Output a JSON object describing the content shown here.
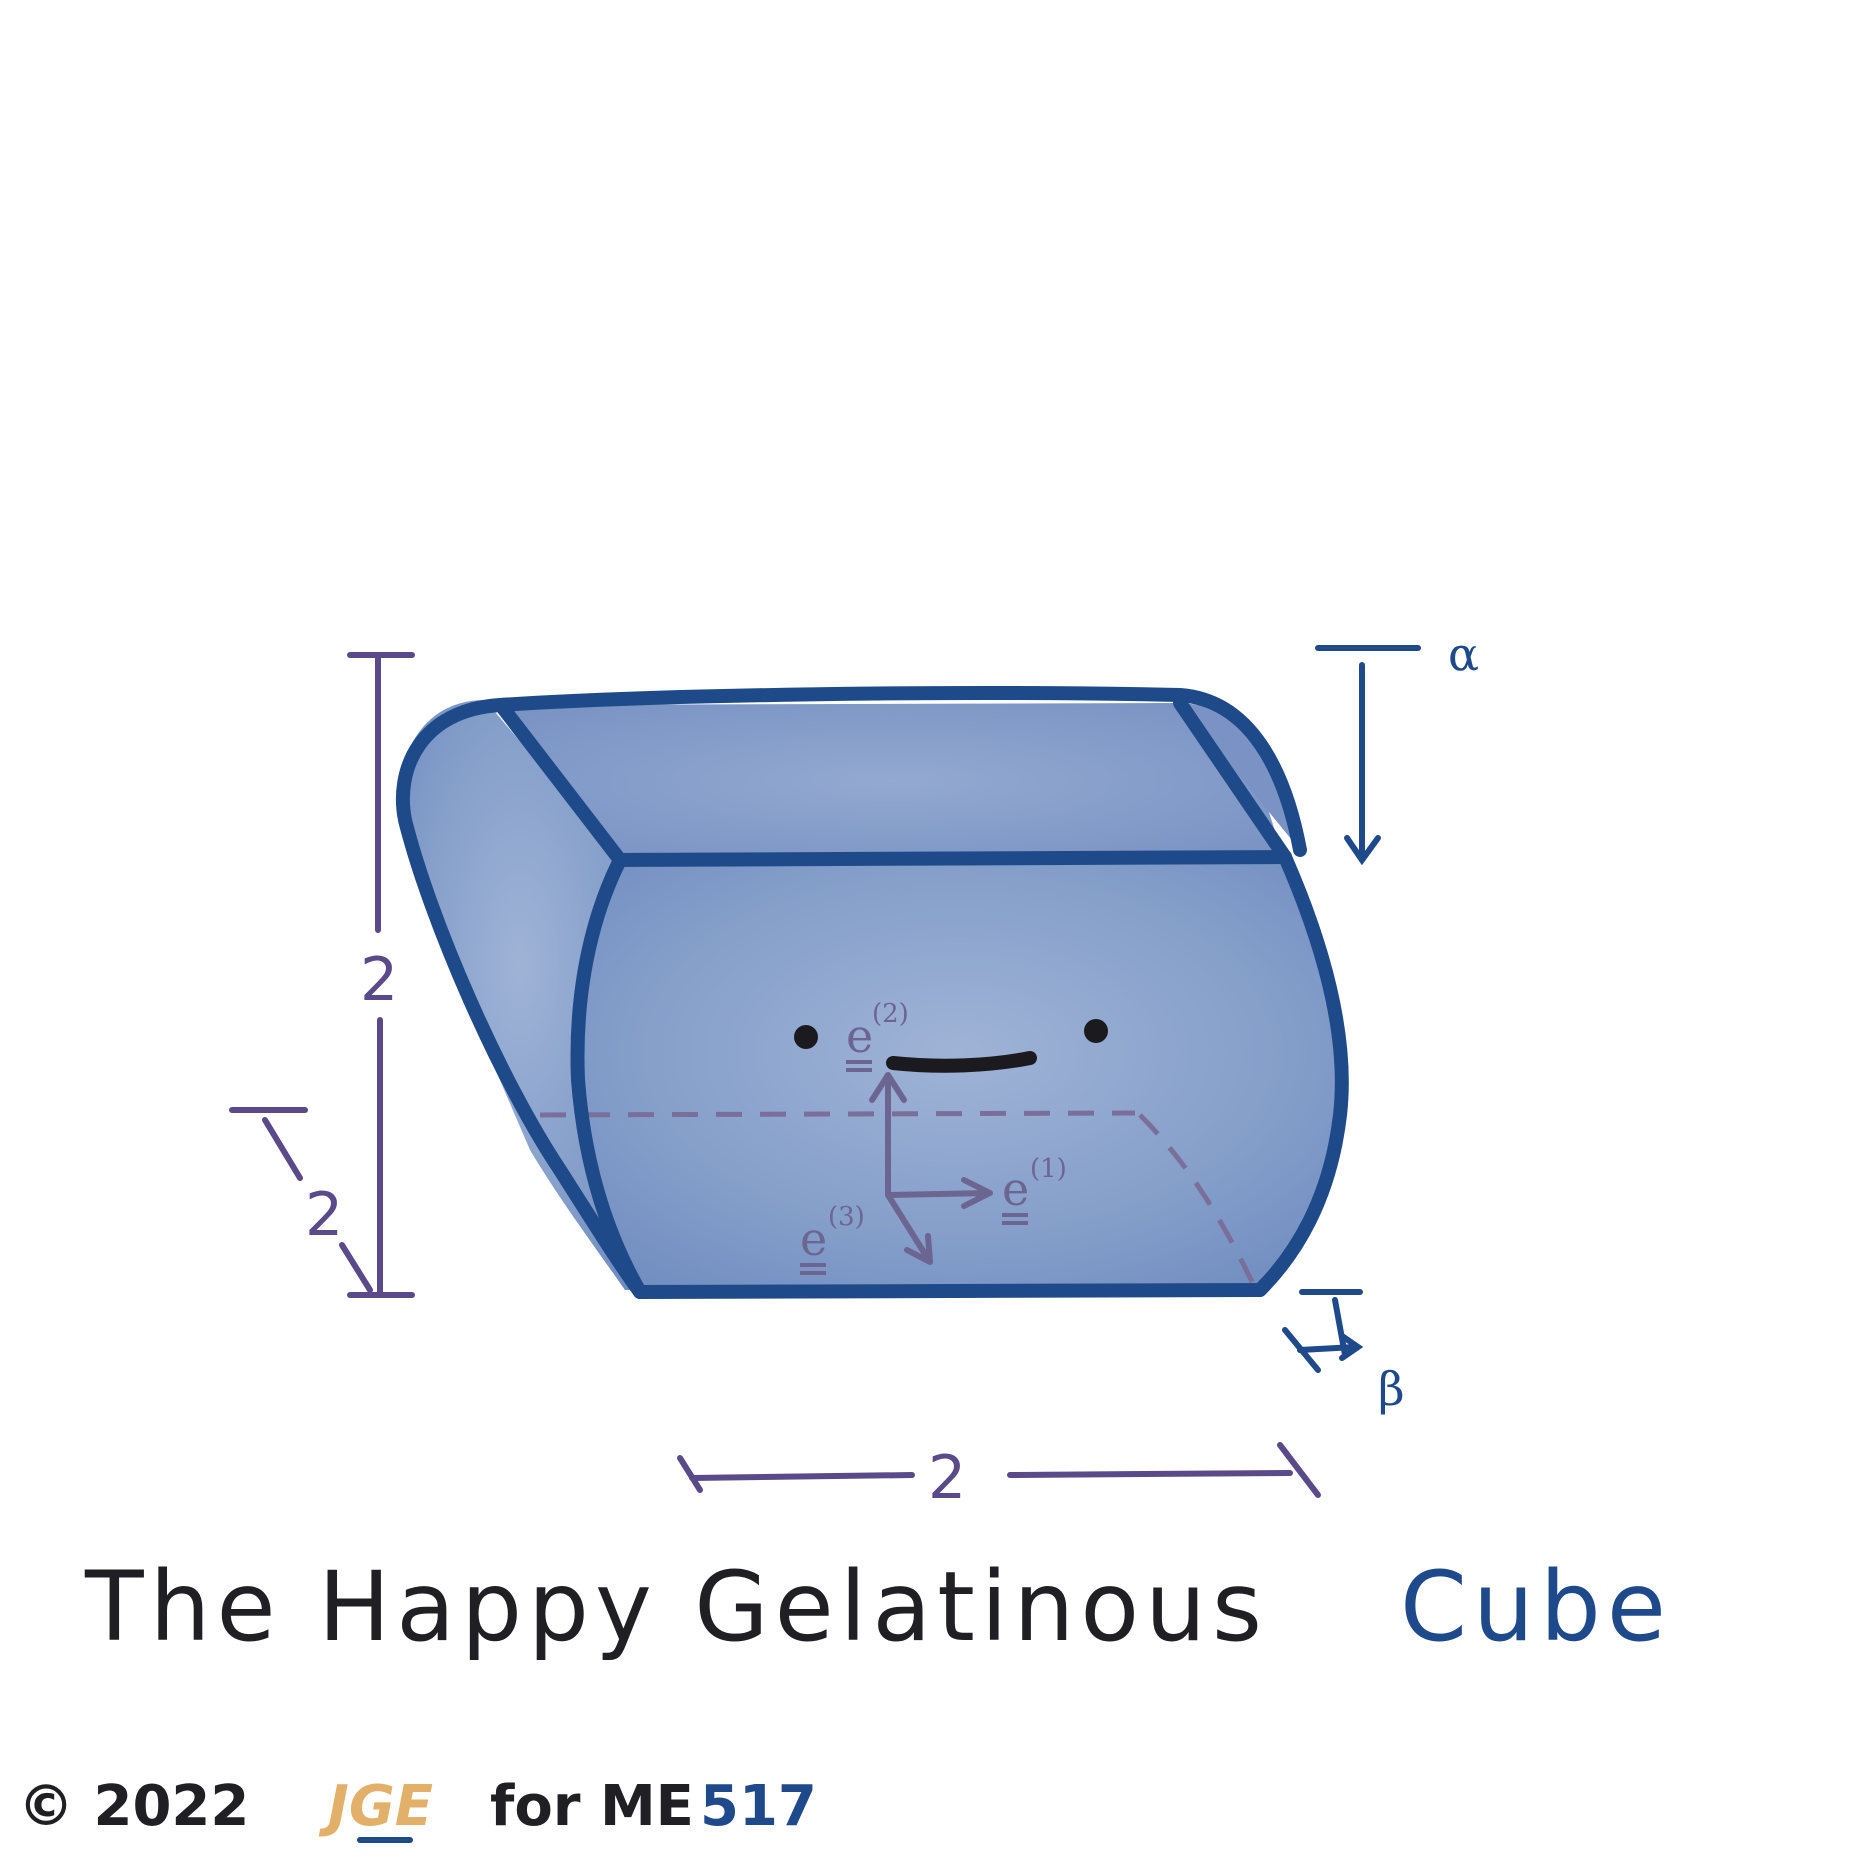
{
  "title": {
    "part1": "The Happy Gelatinous",
    "part2": "Cube"
  },
  "dimensions": {
    "height": "2",
    "depth": "2",
    "width": "2"
  },
  "parameters": {
    "alpha": "α",
    "beta": "β"
  },
  "basis_vectors": {
    "e1": {
      "base": "e",
      "sup": "(1)"
    },
    "e2": {
      "base": "e",
      "sup": "(2)"
    },
    "e3": {
      "base": "e",
      "sup": "(3)"
    }
  },
  "credit": {
    "copyright": "© 2022",
    "author": "JGE",
    "for_text": "for ME",
    "course_number": "517"
  },
  "colors": {
    "outline": "#1f4a8a",
    "fill": "#8ea7cf",
    "dimension": "#5a4a8a",
    "basis": "#6c6592",
    "title_dark": "#1f1f24",
    "title_blue": "#1e4a8c",
    "author": "#e3b06a"
  }
}
